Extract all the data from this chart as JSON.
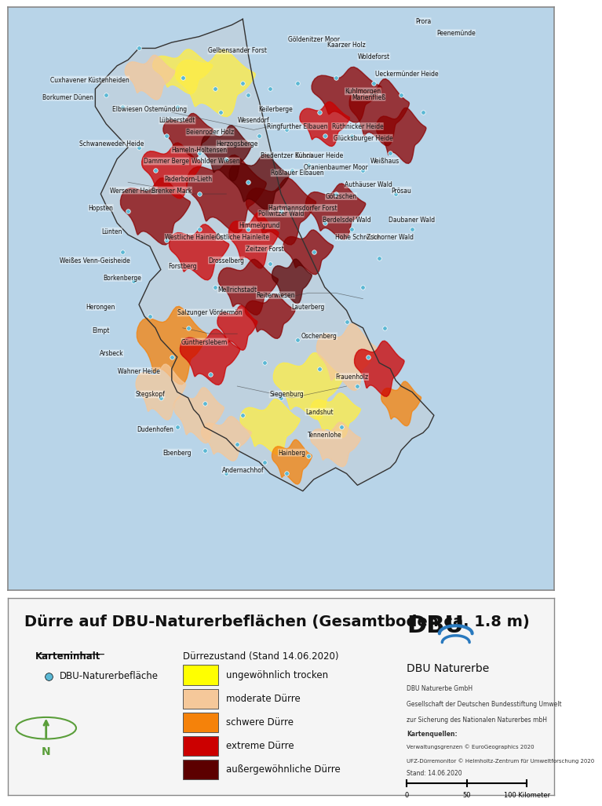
{
  "title": "Dürre auf DBU-Naturerbeflächen (Gesamtboden ca. 1.8 m)",
  "map_background_color": "#b8d4e8",
  "legend_bg_color": "#f5f5f5",
  "legend_border_color": "#888888",
  "map_border_color": "#888888",
  "karteninhalt_label": "Karteninhalt",
  "dbu_point_label": "DBU-Naturerbefläche",
  "dbu_point_color": "#5bb8d4",
  "durrezustand_label": "Dürrezustand (Stand 14.06.2020)",
  "legend_items": [
    {
      "label": "ungewöhnlich trocken",
      "color": "#ffff00"
    },
    {
      "label": "moderate Dürre",
      "color": "#f5c89a"
    },
    {
      "label": "schwere Dürre",
      "color": "#f5820a"
    },
    {
      "label": "extreme Dürre",
      "color": "#cc0000"
    },
    {
      "label": "außergewöhnliche Dürre",
      "color": "#5c0000"
    }
  ],
  "dbu_logo_text": "DBU",
  "dbu_naturerbe_text": "DBU Naturerbe",
  "dbu_company_text": "DBU Naturerbe GmbH\nGesellschaft der Deutschen Bundesstiftung Umwelt\nzur Sicherung des Nationalen Naturerbes mbH",
  "kartenquellen_label": "Kartenquellen:",
  "kartenquellen_text": "Verwaltungsgrenzen © EuroGeographics 2020\nUFZ-Dürremonitor © Helmholtz-Zentrum für Umweltforschung 2020",
  "stand_text": "Stand: 14.06.2020",
  "north_arrow_color": "#5a9e3a",
  "figure_bg": "#ffffff",
  "title_fontsize": 14,
  "legend_fontsize": 8.5
}
